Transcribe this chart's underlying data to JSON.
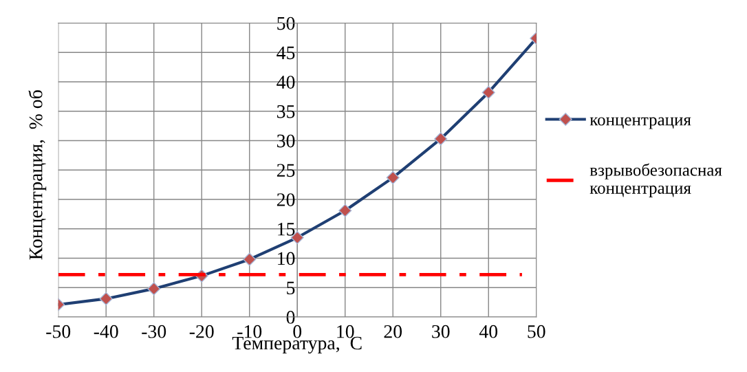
{
  "chart_data": {
    "type": "line",
    "xlabel": "Температура,  С",
    "ylabel": "Концентрация,  % об",
    "xlim": [
      -50,
      50
    ],
    "xticks": [
      -50,
      -40,
      -30,
      -20,
      -10,
      0,
      10,
      20,
      30,
      40,
      50
    ],
    "ylim": [
      0,
      50
    ],
    "yticks": [
      0,
      5,
      10,
      15,
      20,
      25,
      30,
      35,
      40,
      45,
      50
    ],
    "grid": true,
    "legend": "right",
    "series": [
      {
        "name": "концентрация",
        "color": "#1f3f73",
        "marker": "diamond",
        "line_style": "solid",
        "x": [
          -50,
          -40,
          -30,
          -20,
          -10,
          0,
          10,
          20,
          30,
          40,
          50
        ],
        "values": [
          2.1,
          3.1,
          4.8,
          7.0,
          9.8,
          13.5,
          18.1,
          23.7,
          30.3,
          38.2,
          47.4
        ]
      },
      {
        "name": "взрывобезопасная концентрация",
        "color": "#ff0000",
        "marker": "none",
        "line_style": "dashed",
        "x": [
          -50,
          47
        ],
        "values": [
          7.2,
          7.2
        ]
      }
    ]
  }
}
